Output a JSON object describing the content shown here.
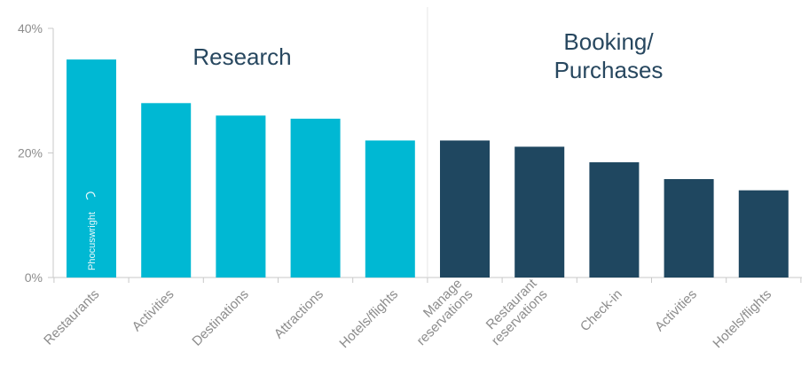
{
  "chart_data": {
    "type": "bar",
    "categories": [
      [
        "Restaurants"
      ],
      [
        "Activities"
      ],
      [
        "Destinations"
      ],
      [
        "Attractions"
      ],
      [
        "Hotels/flights"
      ],
      [
        "Manage",
        "reservations"
      ],
      [
        "Restaurant",
        "reservations"
      ],
      [
        "Check-in"
      ],
      [
        "Activities"
      ],
      [
        "Hotels/flights"
      ]
    ],
    "values": [
      35,
      28,
      26,
      25.5,
      22,
      22,
      21,
      18.5,
      15.8,
      14
    ],
    "groups": [
      {
        "label_lines": [
          "Research"
        ],
        "count": 5,
        "color": "#00b8d3"
      },
      {
        "label_lines": [
          "Booking/",
          "Purchases"
        ],
        "count": 5,
        "color": "#1f4760"
      }
    ],
    "yticks": [
      "40%",
      "20%",
      "0%"
    ],
    "ylim": [
      0,
      40
    ],
    "grid": false,
    "watermark": "Phocuswright"
  }
}
